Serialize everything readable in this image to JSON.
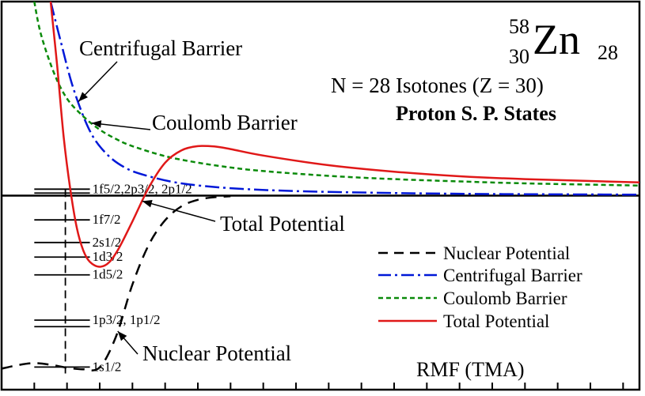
{
  "chart_data": {
    "type": "line",
    "title": {
      "mass_number": "58",
      "atomic_number": "30",
      "element": "Zn",
      "neutron_number": "28"
    },
    "subtitle_lines": [
      "N = 28 Isotones (Z = 30)",
      "Proton S. P. States"
    ],
    "method_label": "RMF (TMA)",
    "xlabel": "",
    "ylabel": "",
    "xlim": [
      0,
      19.5
    ],
    "ylim": [
      -60,
      60
    ],
    "grid": false,
    "legend": {
      "placement": "lower-right",
      "entries": [
        {
          "label": "Nuclear Potential",
          "series": "nuclear"
        },
        {
          "label": "Centrifugal Barrier",
          "series": "centrifugal"
        },
        {
          "label": "Coulomb Barrier",
          "series": "coulomb"
        },
        {
          "label": "Total Potential",
          "series": "total"
        }
      ]
    },
    "annotations": [
      {
        "text": "Centrifugal Barrier",
        "series": "centrifugal"
      },
      {
        "text": "Coulomb Barrier",
        "series": "coulomb"
      },
      {
        "text": "Total Potential",
        "series": "total"
      },
      {
        "text": "Nuclear Potential",
        "series": "nuclear"
      }
    ],
    "series": [
      {
        "id": "nuclear",
        "color": "#000000",
        "dash": "14,9",
        "width": 2.5,
        "x": [
          0,
          0.5,
          1,
          1.5,
          2,
          2.5,
          3,
          3.5,
          4,
          4.5,
          5,
          5.5,
          6,
          6.5,
          7
        ],
        "y": [
          -53.5,
          -52.4,
          -51.8,
          -52.3,
          -53.2,
          -53.7,
          -53.1,
          -43.5,
          -27.5,
          -15.2,
          -7.6,
          -3.3,
          -1.3,
          -0.5,
          -0.2
        ]
      },
      {
        "id": "centrifugal",
        "color": "#0018d8",
        "dash": "18,5,3,5",
        "width": 2.5,
        "x": [
          1.5,
          1.8,
          2.2,
          2.7,
          3.2,
          3.8,
          4.5,
          5.5,
          7,
          9,
          12,
          15,
          19.5
        ],
        "y": [
          60,
          48,
          33,
          20,
          13,
          8.5,
          6,
          3.8,
          2.3,
          1.4,
          0.8,
          0.5,
          0.3
        ]
      },
      {
        "id": "coulomb",
        "color": "#0a8a0a",
        "dash": "6,4",
        "width": 2.5,
        "x": [
          1,
          1.2,
          1.6,
          2,
          2.5,
          3,
          3.5,
          4,
          5,
          6,
          7,
          8,
          10,
          12,
          14,
          16,
          19.5
        ],
        "y": [
          60,
          50,
          38,
          30,
          24.5,
          20.4,
          17.5,
          15.3,
          12.2,
          10.2,
          8.7,
          7.6,
          6.1,
          5.1,
          4.4,
          3.8,
          3.1
        ]
      },
      {
        "id": "total",
        "color": "#e01818",
        "dash": "",
        "width": 2.5,
        "x": [
          1.5,
          1.7,
          1.9,
          2.1,
          2.3,
          2.5,
          2.7,
          3,
          3.3,
          3.6,
          4,
          4.5,
          5,
          5.5,
          6,
          6.5,
          7,
          8,
          10,
          12,
          14,
          16,
          19.5
        ],
        "y": [
          60,
          40,
          18,
          2,
          -10,
          -17,
          -20.5,
          -22,
          -20.5,
          -16,
          -8,
          2.5,
          10.2,
          14,
          15.3,
          15.2,
          14.4,
          12.4,
          9.4,
          7.4,
          6,
          5.1,
          4.1
        ]
      }
    ],
    "levels": [
      {
        "label": "1f5/2,2p3/2, 2p1/2",
        "energies": [
          0.8,
          2.0
        ]
      },
      {
        "label": "1f7/2",
        "energies": [
          -7.5
        ]
      },
      {
        "label": "2s1/2",
        "energies": [
          -14.5
        ]
      },
      {
        "label": "1d3/2",
        "energies": [
          -19.0
        ]
      },
      {
        "label": "1d5/2",
        "energies": [
          -24.5
        ]
      },
      {
        "label": "1p3/2, 1p1/2",
        "energies": [
          -38.5,
          -40.5
        ]
      },
      {
        "label": "1s1/2",
        "energies": [
          -53.0
        ]
      }
    ],
    "level_span_x": [
      1.0,
      2.7
    ],
    "level_guide_x": 1.95
  }
}
